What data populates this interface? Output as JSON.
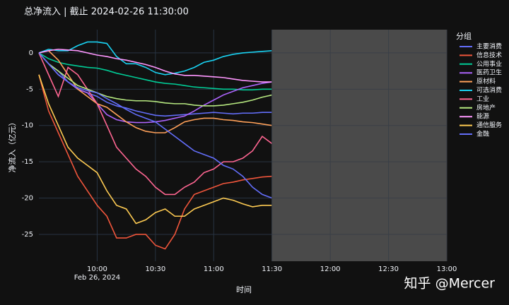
{
  "chart_data": {
    "type": "line",
    "title": "总净流入 | 截止 2024-02-26 11:30:00",
    "x_label": "时间",
    "y_label": "净流入（亿元）",
    "legend_title": "分组",
    "legend": "right",
    "x_date_label": "Feb 26, 2024",
    "watermark": "知乎 @Mercer",
    "x": [
      "09:30",
      "09:35",
      "09:40",
      "09:45",
      "09:50",
      "09:55",
      "10:00",
      "10:05",
      "10:10",
      "10:15",
      "10:20",
      "10:25",
      "10:30",
      "10:35",
      "10:40",
      "10:45",
      "10:50",
      "10:55",
      "11:00",
      "11:05",
      "11:10",
      "11:15",
      "11:20",
      "11:25",
      "11:30"
    ],
    "xlim": [
      "09:30",
      "13:00"
    ],
    "xticks": [
      "10:00",
      "10:30",
      "11:00",
      "11:30",
      "12:00",
      "12:30",
      "13:00"
    ],
    "ylim": [
      -28.7,
      3.2
    ],
    "yticks": [
      0,
      -5,
      -10,
      -15,
      -20,
      -25
    ],
    "grid": true,
    "shade": {
      "x0": "11:30",
      "x1": "13:00",
      "color": "#4a4a4a"
    },
    "series": [
      {
        "name": "主要消费",
        "color": "#636efa",
        "values": [
          0,
          -1.5,
          -2.5,
          -4,
          -5,
          -5.5,
          -6,
          -6.8,
          -7.3,
          -7.6,
          -8,
          -8.3,
          -8.6,
          -8.7,
          -8.6,
          -8.5,
          -8.4,
          -8.3,
          -8.2,
          -8.3,
          -8.4,
          -8.3,
          -8.3,
          -8.2,
          -8.2
        ]
      },
      {
        "name": "信息技术",
        "color": "#EF553B",
        "values": [
          -3,
          -8,
          -11,
          -14,
          -17,
          -19,
          -21,
          -22.5,
          -25.5,
          -25.5,
          -25,
          -25,
          -26.5,
          -27,
          -25,
          -21.5,
          -19.5,
          -19,
          -18.5,
          -18,
          -17.8,
          -17.5,
          -17.3,
          -17.1,
          -17
        ]
      },
      {
        "name": "公用事业",
        "color": "#00cc96",
        "values": [
          0,
          -0.8,
          -1.3,
          -1.6,
          -1.8,
          -2,
          -2.1,
          -2.4,
          -2.8,
          -3.1,
          -3.4,
          -3.7,
          -4,
          -4.2,
          -4.3,
          -4.5,
          -4.7,
          -4.8,
          -4.9,
          -5,
          -5,
          -5.1,
          -5.1,
          -5,
          -5
        ]
      },
      {
        "name": "医药卫生",
        "color": "#ab63fa",
        "values": [
          0,
          -1.5,
          -3,
          -4,
          -5,
          -5.5,
          -7,
          -8.5,
          -9.2,
          -9.5,
          -9.6,
          -9.6,
          -9.5,
          -9.3,
          -9,
          -8.7,
          -8,
          -7.2,
          -6.5,
          -5.8,
          -5.3,
          -4.8,
          -4.5,
          -4.2,
          -4
        ]
      },
      {
        "name": "原材料",
        "color": "#FFA15A",
        "values": [
          0,
          0.3,
          -1,
          -3,
          -5,
          -6,
          -7,
          -7.5,
          -8.5,
          -9.5,
          -10.3,
          -10.8,
          -11,
          -11,
          -10.3,
          -9.5,
          -9.2,
          -9,
          -9,
          -9.2,
          -9.3,
          -9.5,
          -9.6,
          -9.8,
          -10
        ]
      },
      {
        "name": "可选消费",
        "color": "#19d3f3",
        "values": [
          0,
          0.5,
          0.3,
          0.3,
          1,
          1.5,
          1.5,
          1.3,
          -0.5,
          -1.5,
          -1.5,
          -2,
          -2.7,
          -3,
          -2.8,
          -2.5,
          -2,
          -1.3,
          -1,
          -0.5,
          -0.2,
          0,
          0.1,
          0.2,
          0.3
        ]
      },
      {
        "name": "工业",
        "color": "#FF6692",
        "values": [
          0,
          -3,
          -6,
          -2,
          -3,
          -5,
          -7,
          -10,
          -13,
          -14.5,
          -16,
          -17,
          -18.5,
          -19.5,
          -19.5,
          -18.5,
          -17.8,
          -16.5,
          -16,
          -15,
          -15,
          -14.5,
          -13.5,
          -11.5,
          -12.5
        ]
      },
      {
        "name": "房地产",
        "color": "#B6E880",
        "values": [
          0,
          -1.5,
          -2.5,
          -3.5,
          -4.5,
          -5,
          -5.5,
          -6,
          -6.3,
          -6.5,
          -6.6,
          -6.6,
          -6.7,
          -6.9,
          -7,
          -7,
          -7.2,
          -7.3,
          -7.3,
          -7.2,
          -7,
          -6.8,
          -6.5,
          -6.1,
          -5.8
        ]
      },
      {
        "name": "能源",
        "color": "#FF97FF",
        "values": [
          0,
          0.3,
          0.5,
          0.4,
          0.3,
          0,
          -0.3,
          -0.5,
          -0.8,
          -1,
          -1.3,
          -1.6,
          -2,
          -2.5,
          -2.9,
          -3.1,
          -3.1,
          -3.2,
          -3.3,
          -3.4,
          -3.6,
          -3.8,
          -3.9,
          -4,
          -4
        ]
      },
      {
        "name": "通信服务",
        "color": "#FECB52",
        "values": [
          -3,
          -7,
          -10,
          -13,
          -14.5,
          -15.5,
          -16.5,
          -19,
          -21,
          -21.5,
          -23.5,
          -23,
          -22,
          -21.5,
          -22.5,
          -22.5,
          -21.5,
          -21,
          -20.5,
          -20,
          -20.3,
          -20.8,
          -21.2,
          -21,
          -21
        ]
      },
      {
        "name": "金融",
        "color": "#636efa",
        "values": [
          0,
          -1.5,
          -3,
          -4,
          -4.8,
          -5.2,
          -5.5,
          -6.3,
          -7,
          -7.8,
          -8.5,
          -9,
          -9.5,
          -10.5,
          -11.5,
          -12.5,
          -13.5,
          -14,
          -14.5,
          -15.5,
          -16,
          -17,
          -18.5,
          -19.5,
          -20
        ]
      }
    ]
  }
}
